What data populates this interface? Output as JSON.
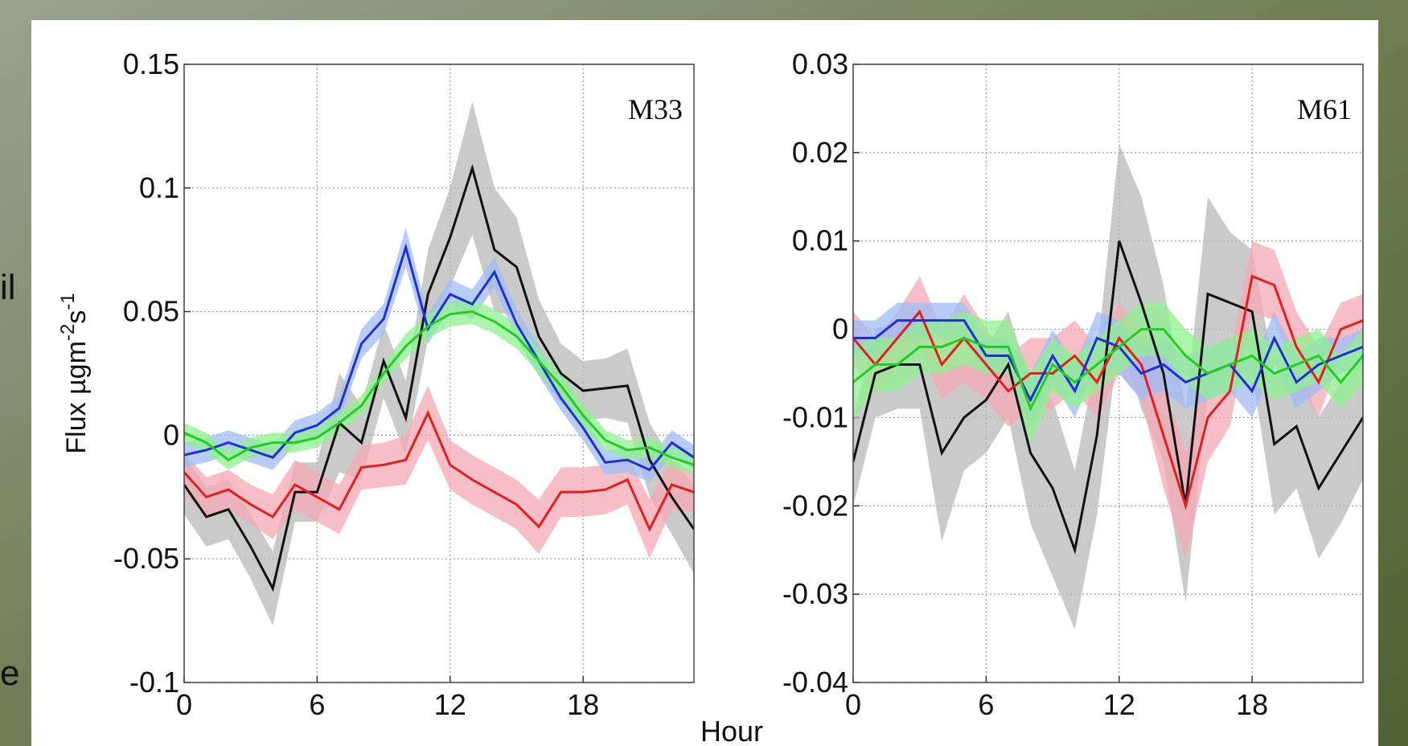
{
  "xlabel": "Hour",
  "edge_text": [
    "il",
    "e"
  ],
  "chart_data": [
    {
      "type": "line",
      "panel_label": "M33",
      "ylabel": [
        "Flux µgm",
        "-2",
        "s",
        "-1"
      ],
      "x": [
        0,
        1,
        2,
        3,
        4,
        5,
        6,
        7,
        8,
        9,
        10,
        11,
        12,
        13,
        14,
        15,
        16,
        17,
        18,
        19,
        20,
        21,
        22,
        23
      ],
      "xlim": [
        0,
        23
      ],
      "xticks": [
        0,
        6,
        12,
        18
      ],
      "ylim": [
        -0.1,
        0.15
      ],
      "yticks": [
        0.15,
        0.1,
        0.05,
        0,
        -0.05,
        -0.1
      ],
      "grid": true,
      "series": [
        {
          "color": "#111111",
          "band_color": "#b8b8b8",
          "values": [
            -0.02,
            -0.033,
            -0.03,
            -0.045,
            -0.062,
            -0.023,
            -0.023,
            0.005,
            -0.003,
            0.03,
            0.007,
            0.057,
            0.08,
            0.108,
            0.075,
            0.068,
            0.04,
            0.025,
            0.018,
            0.019,
            0.02,
            -0.01,
            -0.025,
            -0.038
          ],
          "errors": [
            0.012,
            0.012,
            0.012,
            0.013,
            0.015,
            0.012,
            0.012,
            0.02,
            0.015,
            0.015,
            0.015,
            0.018,
            0.02,
            0.027,
            0.025,
            0.02,
            0.015,
            0.012,
            0.012,
            0.012,
            0.015,
            0.015,
            0.015,
            0.018
          ]
        },
        {
          "color": "#e02020",
          "band_color": "#f5a8b4",
          "values": [
            -0.015,
            -0.025,
            -0.022,
            -0.028,
            -0.033,
            -0.02,
            -0.025,
            -0.03,
            -0.013,
            -0.012,
            -0.01,
            0.009,
            -0.012,
            -0.018,
            -0.023,
            -0.028,
            -0.037,
            -0.023,
            -0.023,
            -0.022,
            -0.018,
            -0.038,
            -0.02,
            -0.023
          ],
          "errors": [
            0.008,
            0.008,
            0.008,
            0.008,
            0.009,
            0.01,
            0.01,
            0.01,
            0.009,
            0.009,
            0.01,
            0.011,
            0.01,
            0.01,
            0.01,
            0.01,
            0.011,
            0.01,
            0.01,
            0.01,
            0.01,
            0.012,
            0.01,
            0.008
          ]
        },
        {
          "color": "#2030d0",
          "band_color": "#9fbcf5",
          "values": [
            -0.008,
            -0.006,
            -0.003,
            -0.006,
            -0.009,
            0.001,
            0.004,
            0.011,
            0.037,
            0.047,
            0.076,
            0.043,
            0.057,
            0.053,
            0.066,
            0.045,
            0.03,
            0.015,
            0.003,
            -0.011,
            -0.01,
            -0.014,
            -0.003,
            -0.009
          ],
          "errors": [
            0.005,
            0.005,
            0.005,
            0.005,
            0.005,
            0.005,
            0.005,
            0.005,
            0.006,
            0.006,
            0.008,
            0.006,
            0.006,
            0.006,
            0.006,
            0.006,
            0.006,
            0.005,
            0.005,
            0.005,
            0.005,
            0.005,
            0.005,
            0.005
          ]
        },
        {
          "color": "#22cc22",
          "band_color": "#8ff08f",
          "values": [
            0.001,
            -0.003,
            -0.01,
            -0.005,
            -0.003,
            -0.003,
            -0.001,
            0.005,
            0.012,
            0.025,
            0.036,
            0.044,
            0.049,
            0.05,
            0.046,
            0.04,
            0.03,
            0.02,
            0.008,
            -0.002,
            -0.006,
            -0.005,
            -0.009,
            -0.012
          ],
          "errors": [
            0.004,
            0.004,
            0.004,
            0.004,
            0.004,
            0.004,
            0.004,
            0.004,
            0.004,
            0.004,
            0.005,
            0.005,
            0.005,
            0.005,
            0.005,
            0.005,
            0.005,
            0.005,
            0.005,
            0.004,
            0.004,
            0.004,
            0.004,
            0.004
          ]
        }
      ]
    },
    {
      "type": "line",
      "panel_label": "M61",
      "x": [
        0,
        1,
        2,
        3,
        4,
        5,
        6,
        7,
        8,
        9,
        10,
        11,
        12,
        13,
        14,
        15,
        16,
        17,
        18,
        19,
        20,
        21,
        22,
        23
      ],
      "xlim": [
        0,
        23
      ],
      "xticks": [
        0,
        6,
        12,
        18
      ],
      "ylim": [
        -0.04,
        0.03
      ],
      "yticks": [
        0.03,
        0.02,
        0.01,
        0,
        -0.01,
        -0.02,
        -0.03,
        -0.04
      ],
      "grid": true,
      "series": [
        {
          "color": "#111111",
          "band_color": "#b8b8b8",
          "values": [
            -0.015,
            -0.005,
            -0.004,
            -0.004,
            -0.014,
            -0.01,
            -0.008,
            -0.004,
            -0.014,
            -0.018,
            -0.025,
            -0.012,
            0.01,
            0.003,
            -0.005,
            -0.02,
            0.004,
            0.003,
            0.002,
            -0.013,
            -0.011,
            -0.018,
            -0.014,
            -0.01
          ],
          "errors": [
            0.005,
            0.005,
            0.005,
            0.005,
            0.01,
            0.006,
            0.006,
            0.006,
            0.008,
            0.01,
            0.009,
            0.009,
            0.011,
            0.012,
            0.01,
            0.011,
            0.011,
            0.008,
            0.007,
            0.008,
            0.007,
            0.008,
            0.008,
            0.007
          ]
        },
        {
          "color": "#e02020",
          "band_color": "#f5a8b4",
          "values": [
            -0.001,
            -0.004,
            -0.001,
            0.002,
            -0.004,
            -0.001,
            -0.004,
            -0.007,
            -0.005,
            -0.005,
            -0.003,
            -0.006,
            -0.001,
            -0.004,
            -0.012,
            -0.02,
            -0.01,
            -0.007,
            0.006,
            0.005,
            -0.002,
            -0.006,
            0,
            0.001
          ],
          "errors": [
            0.003,
            0.003,
            0.003,
            0.004,
            0.004,
            0.005,
            0.004,
            0.004,
            0.004,
            0.004,
            0.004,
            0.004,
            0.004,
            0.004,
            0.006,
            0.006,
            0.005,
            0.004,
            0.004,
            0.004,
            0.004,
            0.004,
            0.003,
            0.003
          ]
        },
        {
          "color": "#2030d0",
          "band_color": "#9fbcf5",
          "values": [
            -0.001,
            -0.001,
            0.001,
            0.001,
            0.001,
            0.001,
            -0.003,
            -0.003,
            -0.008,
            -0.003,
            -0.007,
            -0.001,
            -0.002,
            -0.005,
            -0.004,
            -0.006,
            -0.005,
            -0.004,
            -0.007,
            -0.001,
            -0.006,
            -0.004,
            -0.003,
            -0.002
          ],
          "errors": [
            0.002,
            0.002,
            0.002,
            0.002,
            0.002,
            0.002,
            0.002,
            0.002,
            0.003,
            0.003,
            0.003,
            0.003,
            0.003,
            0.003,
            0.003,
            0.003,
            0.003,
            0.003,
            0.003,
            0.003,
            0.003,
            0.003,
            0.002,
            0.002
          ]
        },
        {
          "color": "#22cc22",
          "band_color": "#8ff08f",
          "values": [
            -0.006,
            -0.004,
            -0.004,
            -0.002,
            -0.002,
            -0.001,
            -0.002,
            -0.002,
            -0.009,
            -0.004,
            -0.006,
            -0.004,
            -0.002,
            0,
            0,
            -0.003,
            -0.005,
            -0.004,
            -0.003,
            -0.005,
            -0.004,
            -0.003,
            -0.006,
            -0.003
          ],
          "errors": [
            0.004,
            0.003,
            0.003,
            0.003,
            0.003,
            0.003,
            0.003,
            0.003,
            0.004,
            0.003,
            0.003,
            0.003,
            0.003,
            0.003,
            0.003,
            0.003,
            0.003,
            0.003,
            0.003,
            0.003,
            0.003,
            0.003,
            0.003,
            0.003
          ]
        }
      ]
    }
  ]
}
